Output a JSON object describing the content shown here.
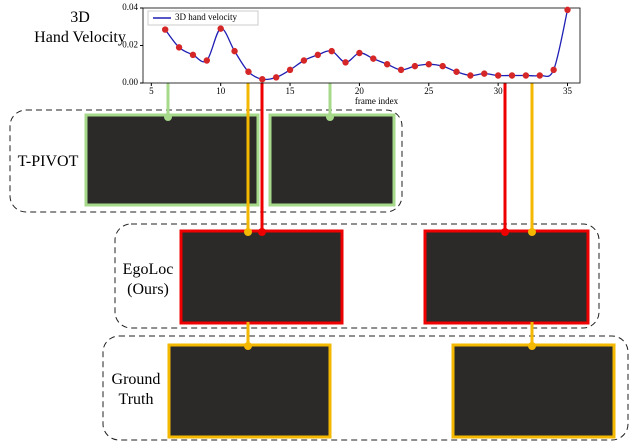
{
  "chart_data": {
    "type": "line",
    "title": "3D Hand Velocity",
    "xlabel": "frame index",
    "x": [
      6,
      7,
      8,
      9,
      10,
      11,
      12,
      13,
      14,
      15,
      16,
      17,
      18,
      19,
      20,
      21,
      22,
      23,
      24,
      25,
      26,
      27,
      28,
      29,
      30,
      31,
      32,
      33,
      34,
      35
    ],
    "series": [
      {
        "name": "3D hand velocity",
        "color": "#1f1fb4",
        "values": [
          0.0285,
          0.019,
          0.015,
          0.012,
          0.029,
          0.017,
          0.006,
          0.002,
          0.003,
          0.007,
          0.012,
          0.015,
          0.017,
          0.011,
          0.016,
          0.013,
          0.01,
          0.007,
          0.009,
          0.01,
          0.009,
          0.006,
          0.004,
          0.005,
          0.004,
          0.004,
          0.004,
          0.004,
          0.007,
          0.039
        ]
      }
    ],
    "marker_color": "#d62728",
    "xlim": [
      4.4,
      35.9
    ],
    "xticks": [
      5,
      10,
      15,
      20,
      25,
      30,
      35
    ],
    "ylim": [
      0,
      0.04
    ],
    "yticks": [
      {
        "value": 0,
        "label": "0.00"
      },
      {
        "value": 0.02,
        "label": "0.02"
      },
      {
        "value": 0.04,
        "label": "0.04"
      }
    ]
  },
  "rows": [
    {
      "label": "T-PIVOT"
    },
    {
      "label": "EgoLoc (Ours)"
    },
    {
      "label": "Ground Truth"
    }
  ]
}
